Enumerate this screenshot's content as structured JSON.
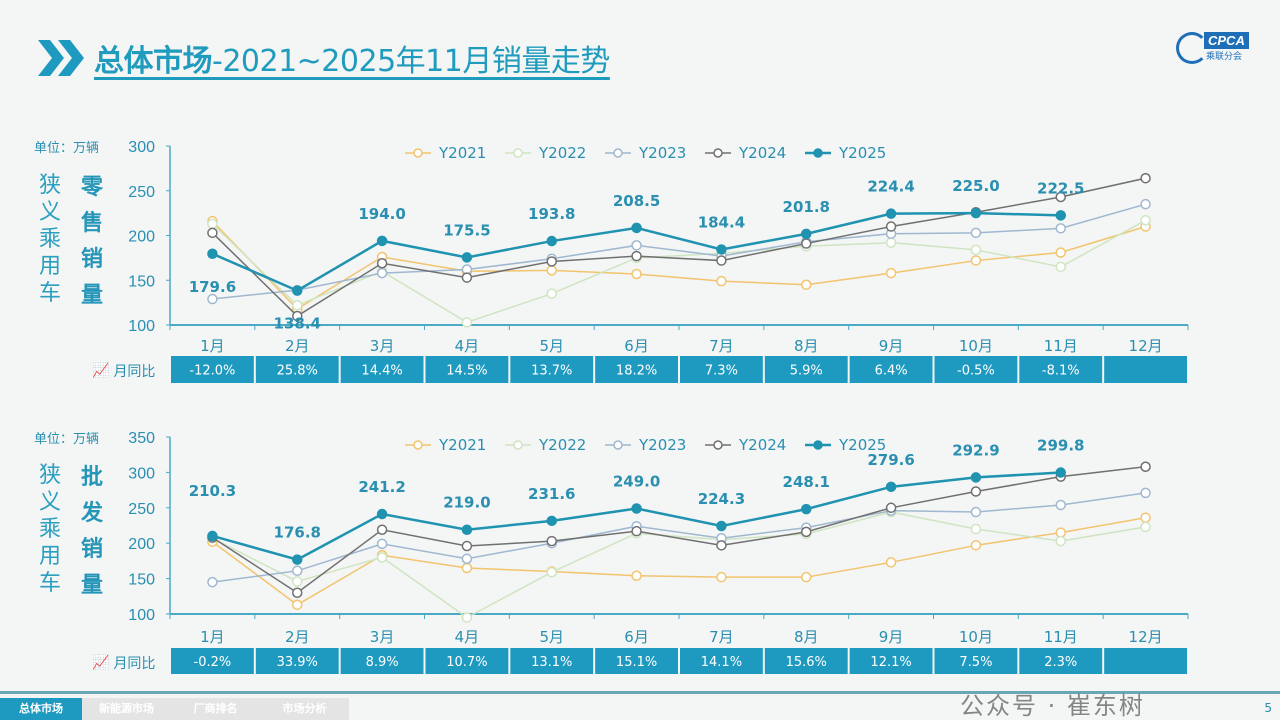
{
  "header": {
    "title_bold": "总体市场",
    "title_rest": "-2021~2025年11月销量走势",
    "logo_text": "CPCA",
    "logo_sub": "乘联分会"
  },
  "colors": {
    "accent": "#1e9ac0",
    "Y2021": "#f2c46d",
    "Y2022": "#cfe5c2",
    "Y2023": "#9fb8d0",
    "Y2024": "#707070",
    "Y2025": "#1f93b0"
  },
  "chart_data": [
    {
      "type": "line",
      "unit_label": "单位：万辆",
      "side_label_1": "狭义乘用车",
      "side_label_2": "零售销量",
      "yoy_label": "月同比",
      "categories": [
        "1月",
        "2月",
        "3月",
        "4月",
        "5月",
        "6月",
        "7月",
        "8月",
        "9月",
        "10月",
        "11月",
        "12月"
      ],
      "ylim": [
        100,
        300
      ],
      "yticks": [
        100,
        150,
        200,
        250,
        300
      ],
      "legend_position": "top",
      "series": [
        {
          "name": "Y2021",
          "values": [
            216,
            118,
            176,
            160,
            161,
            157,
            149,
            145,
            158,
            172,
            181,
            210
          ]
        },
        {
          "name": "Y2022",
          "values": [
            213,
            122,
            160,
            103,
            135,
            175,
            180,
            188,
            192,
            184,
            165,
            217
          ]
        },
        {
          "name": "Y2023",
          "values": [
            129,
            139,
            158,
            162,
            174,
            189,
            177,
            193,
            202,
            203,
            208,
            235
          ]
        },
        {
          "name": "Y2024",
          "values": [
            203,
            110,
            169,
            153,
            171,
            177,
            172,
            191,
            210,
            226,
            243,
            264
          ]
        },
        {
          "name": "Y2025",
          "values": [
            179.6,
            138.4,
            194.0,
            175.5,
            193.8,
            208.5,
            184.4,
            201.8,
            224.4,
            225.0,
            222.5,
            null
          ]
        }
      ],
      "data_labels": [
        "179.6",
        "138.4",
        "194.0",
        "175.5",
        "193.8",
        "208.5",
        "184.4",
        "201.8",
        "224.4",
        "225.0",
        "222.5"
      ],
      "yoy": [
        "-12.0%",
        "25.8%",
        "14.4%",
        "14.5%",
        "13.7%",
        "18.2%",
        "7.3%",
        "5.9%",
        "6.4%",
        "-0.5%",
        "-8.1%",
        ""
      ]
    },
    {
      "type": "line",
      "unit_label": "单位：万辆",
      "side_label_1": "狭义乘用车",
      "side_label_2": "批发销量",
      "yoy_label": "月同比",
      "categories": [
        "1月",
        "2月",
        "3月",
        "4月",
        "5月",
        "6月",
        "7月",
        "8月",
        "9月",
        "10月",
        "11月",
        "12月"
      ],
      "ylim": [
        100,
        350
      ],
      "yticks": [
        100,
        150,
        200,
        250,
        300,
        350
      ],
      "legend_position": "top",
      "series": [
        {
          "name": "Y2021",
          "values": [
            202,
            113,
            183,
            165,
            160,
            154,
            152,
            152,
            173,
            197,
            215,
            236
          ]
        },
        {
          "name": "Y2022",
          "values": [
            207,
            146,
            180,
            95,
            159,
            214,
            205,
            213,
            244,
            220,
            203,
            223
          ]
        },
        {
          "name": "Y2023",
          "values": [
            145,
            161,
            199,
            178,
            200,
            224,
            207,
            222,
            246,
            244,
            254,
            271
          ]
        },
        {
          "name": "Y2024",
          "values": [
            208,
            130,
            219,
            196,
            203,
            217,
            197,
            216,
            250,
            273,
            294,
            308
          ]
        },
        {
          "name": "Y2025",
          "values": [
            210.3,
            176.8,
            241.2,
            219.0,
            231.6,
            249.0,
            224.3,
            248.1,
            279.6,
            292.9,
            299.8,
            null
          ]
        }
      ],
      "data_labels": [
        "210.3",
        "176.8",
        "241.2",
        "219.0",
        "231.6",
        "249.0",
        "224.3",
        "248.1",
        "279.6",
        "292.9",
        "299.8"
      ],
      "yoy": [
        "-0.2%",
        "33.9%",
        "8.9%",
        "10.7%",
        "13.1%",
        "15.1%",
        "14.1%",
        "15.6%",
        "12.1%",
        "7.5%",
        "2.3%",
        ""
      ]
    }
  ],
  "footer": {
    "tabs": [
      "总体市场",
      "新能源市场",
      "厂商排名",
      "市场分析"
    ],
    "page": "5",
    "watermark": "公众号 · 崔东树"
  }
}
